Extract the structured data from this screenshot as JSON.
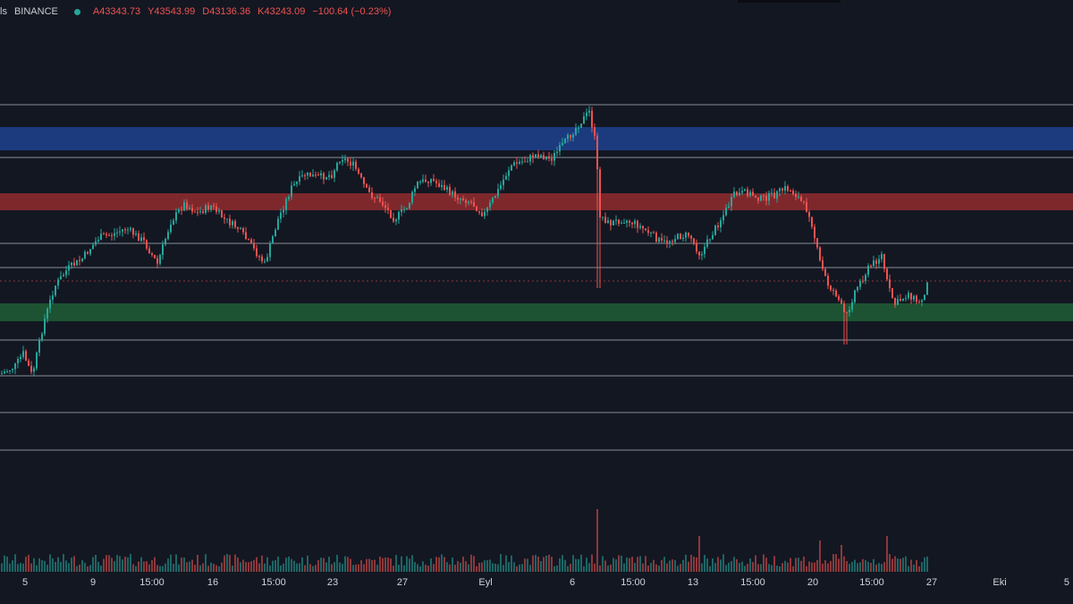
{
  "legend": {
    "symbol_fragment": "ls",
    "exchange": "BINANCE",
    "open": "A43343.73",
    "high": "Y43543.99",
    "low": "D43136.36",
    "close": "K43243.09",
    "change": "−100.64 (−0.23%)"
  },
  "colors": {
    "background": "#131722",
    "up": "#26a69a",
    "down": "#ef5350",
    "zone_blue": "#1e3f8a",
    "zone_red": "#8b2a2e",
    "zone_green": "#1f5a34",
    "level_line": "#b2b5be"
  },
  "x_axis": {
    "labels": [
      "5",
      "9",
      "15:00",
      "16",
      "15:00",
      "23",
      "27",
      "Eyl",
      "6",
      "15:00",
      "13",
      "15:00",
      "20",
      "15:00",
      "27",
      "Eki",
      "5"
    ]
  },
  "chart_data": {
    "type": "candlestick",
    "price_zones": [
      "blue",
      "red",
      "green"
    ],
    "horizontal_levels": 8,
    "has_volume_pane": true
  }
}
